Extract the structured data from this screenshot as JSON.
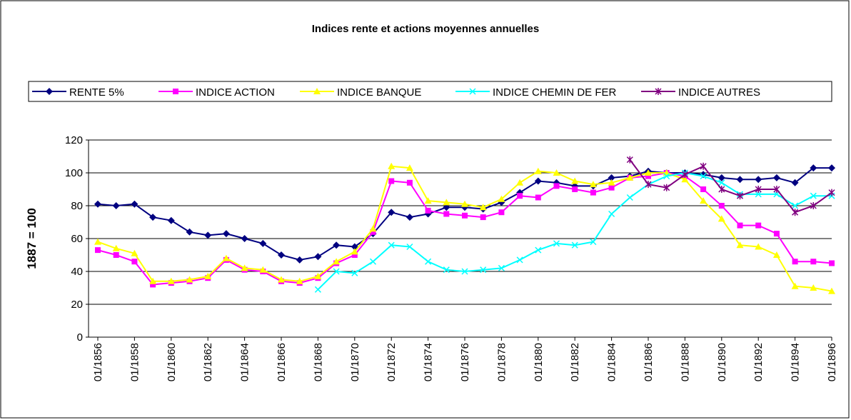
{
  "chart_data": {
    "type": "line",
    "title": "Indices rente et actions moyennes annuelles",
    "y_label": "1887 = 100",
    "categories": [
      "01/1856",
      null,
      "01/1858",
      null,
      "01/1860",
      null,
      "01/1862",
      null,
      "01/1864",
      null,
      "01/1866",
      null,
      "01/1868",
      null,
      "01/1870",
      null,
      "01/1872",
      null,
      "01/1874",
      null,
      "01/1876",
      null,
      "01/1878",
      null,
      "01/1880",
      null,
      "01/1882",
      null,
      "01/1884",
      null,
      "01/1886",
      null,
      "01/1888",
      null,
      "01/1890",
      null,
      "01/1892",
      null,
      "01/1894",
      null,
      "01/1896"
    ],
    "series": [
      {
        "name": "RENTE 5%",
        "color": "#000080",
        "marker": "diamond",
        "values": [
          81,
          80,
          81,
          73,
          71,
          64,
          62,
          63,
          60,
          57,
          50,
          47,
          49,
          56,
          55,
          63,
          76,
          73,
          75,
          79,
          79,
          78,
          82,
          88,
          95,
          94,
          92,
          92,
          97,
          98,
          101,
          100,
          100,
          99,
          97,
          96,
          96,
          97,
          94,
          103,
          103
        ]
      },
      {
        "name": "INDICE ACTION",
        "color": "#ff00ff",
        "marker": "square",
        "values": [
          53,
          50,
          46,
          32,
          33,
          34,
          36,
          47,
          41,
          40,
          34,
          33,
          36,
          45,
          50,
          64,
          95,
          94,
          77,
          75,
          74,
          73,
          76,
          86,
          85,
          92,
          90,
          88,
          91,
          97,
          98,
          100,
          98,
          90,
          80,
          68,
          68,
          63,
          46,
          46,
          45
        ]
      },
      {
        "name": "INDICE BANQUE",
        "color": "#ffff00",
        "marker": "triangle",
        "values": [
          58,
          54,
          51,
          34,
          34,
          35,
          37,
          48,
          42,
          41,
          35,
          34,
          37,
          46,
          52,
          66,
          104,
          103,
          83,
          82,
          81,
          79,
          84,
          94,
          101,
          100,
          95,
          93,
          94,
          97,
          100,
          100,
          96,
          83,
          72,
          56,
          55,
          50,
          31,
          30,
          28
        ]
      },
      {
        "name": "INDICE CHEMIN DE FER",
        "color": "#00ffff",
        "marker": "x",
        "values": [
          null,
          null,
          null,
          null,
          null,
          null,
          null,
          null,
          null,
          null,
          null,
          null,
          29,
          40,
          39,
          46,
          56,
          55,
          46,
          41,
          40,
          41,
          42,
          47,
          53,
          57,
          56,
          58,
          75,
          85,
          93,
          98,
          100,
          98,
          94,
          87,
          87,
          87,
          80,
          86,
          86
        ]
      },
      {
        "name": "INDICE AUTRES",
        "color": "#800080",
        "marker": "star",
        "values": [
          null,
          null,
          null,
          null,
          null,
          null,
          null,
          null,
          null,
          null,
          null,
          null,
          null,
          null,
          null,
          null,
          null,
          null,
          null,
          null,
          null,
          null,
          null,
          null,
          null,
          null,
          null,
          null,
          null,
          108,
          93,
          91,
          99,
          104,
          90,
          86,
          90,
          90,
          76,
          80,
          88
        ]
      }
    ],
    "ylim": [
      0,
      120
    ],
    "yticks": [
      0,
      20,
      40,
      60,
      80,
      100,
      120
    ],
    "grid": true,
    "legend": "top"
  }
}
